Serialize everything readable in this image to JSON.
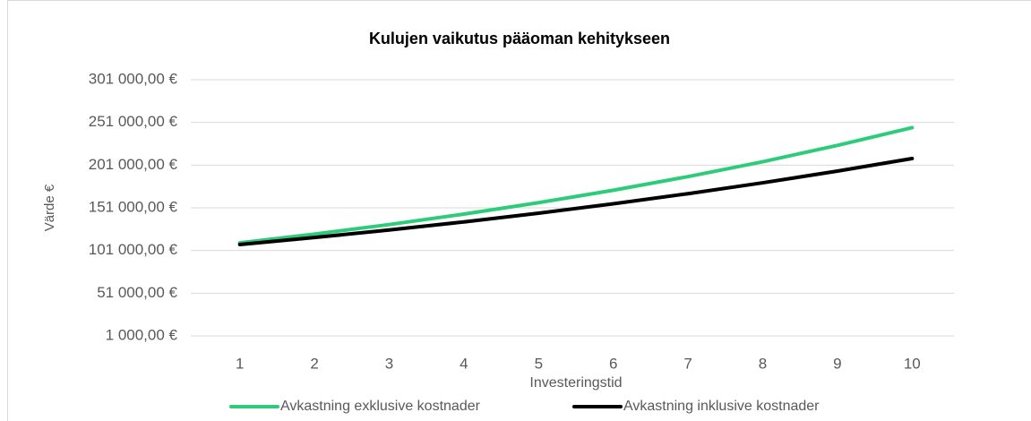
{
  "chart_data": {
    "type": "line",
    "title": "Kulujen vaikutus pääoman kehitykseen",
    "x_label": "Investeringstid",
    "y_label": "Värde €",
    "categories": [
      "1",
      "2",
      "3",
      "4",
      "5",
      "6",
      "7",
      "8",
      "9",
      "10"
    ],
    "series": [
      {
        "name": "Avkastning exklusive kostnader",
        "color": "#2ecc7a",
        "values": [
          110000,
          120230,
          131410,
          143630,
          156990,
          171590,
          187550,
          204990,
          224060,
          244890
        ]
      },
      {
        "name": "Avkastning inklusive kostnader",
        "color": "#000000",
        "values": [
          108000,
          116200,
          125020,
          134520,
          144740,
          155730,
          167560,
          180290,
          193980,
          208700
        ]
      }
    ],
    "ylim": [
      1000,
      301000
    ],
    "yticks": [
      {
        "value": 1000,
        "label": "1 000,00 €"
      },
      {
        "value": 51000,
        "label": "51 000,00 €"
      },
      {
        "value": 101000,
        "label": "101 000,00 €"
      },
      {
        "value": 151000,
        "label": "151 000,00 €"
      },
      {
        "value": 201000,
        "label": "201 000,00 €"
      },
      {
        "value": 251000,
        "label": "251 000,00 €"
      },
      {
        "value": 301000,
        "label": "301 000,00 €"
      }
    ],
    "grid": true,
    "legend": "bottom"
  }
}
